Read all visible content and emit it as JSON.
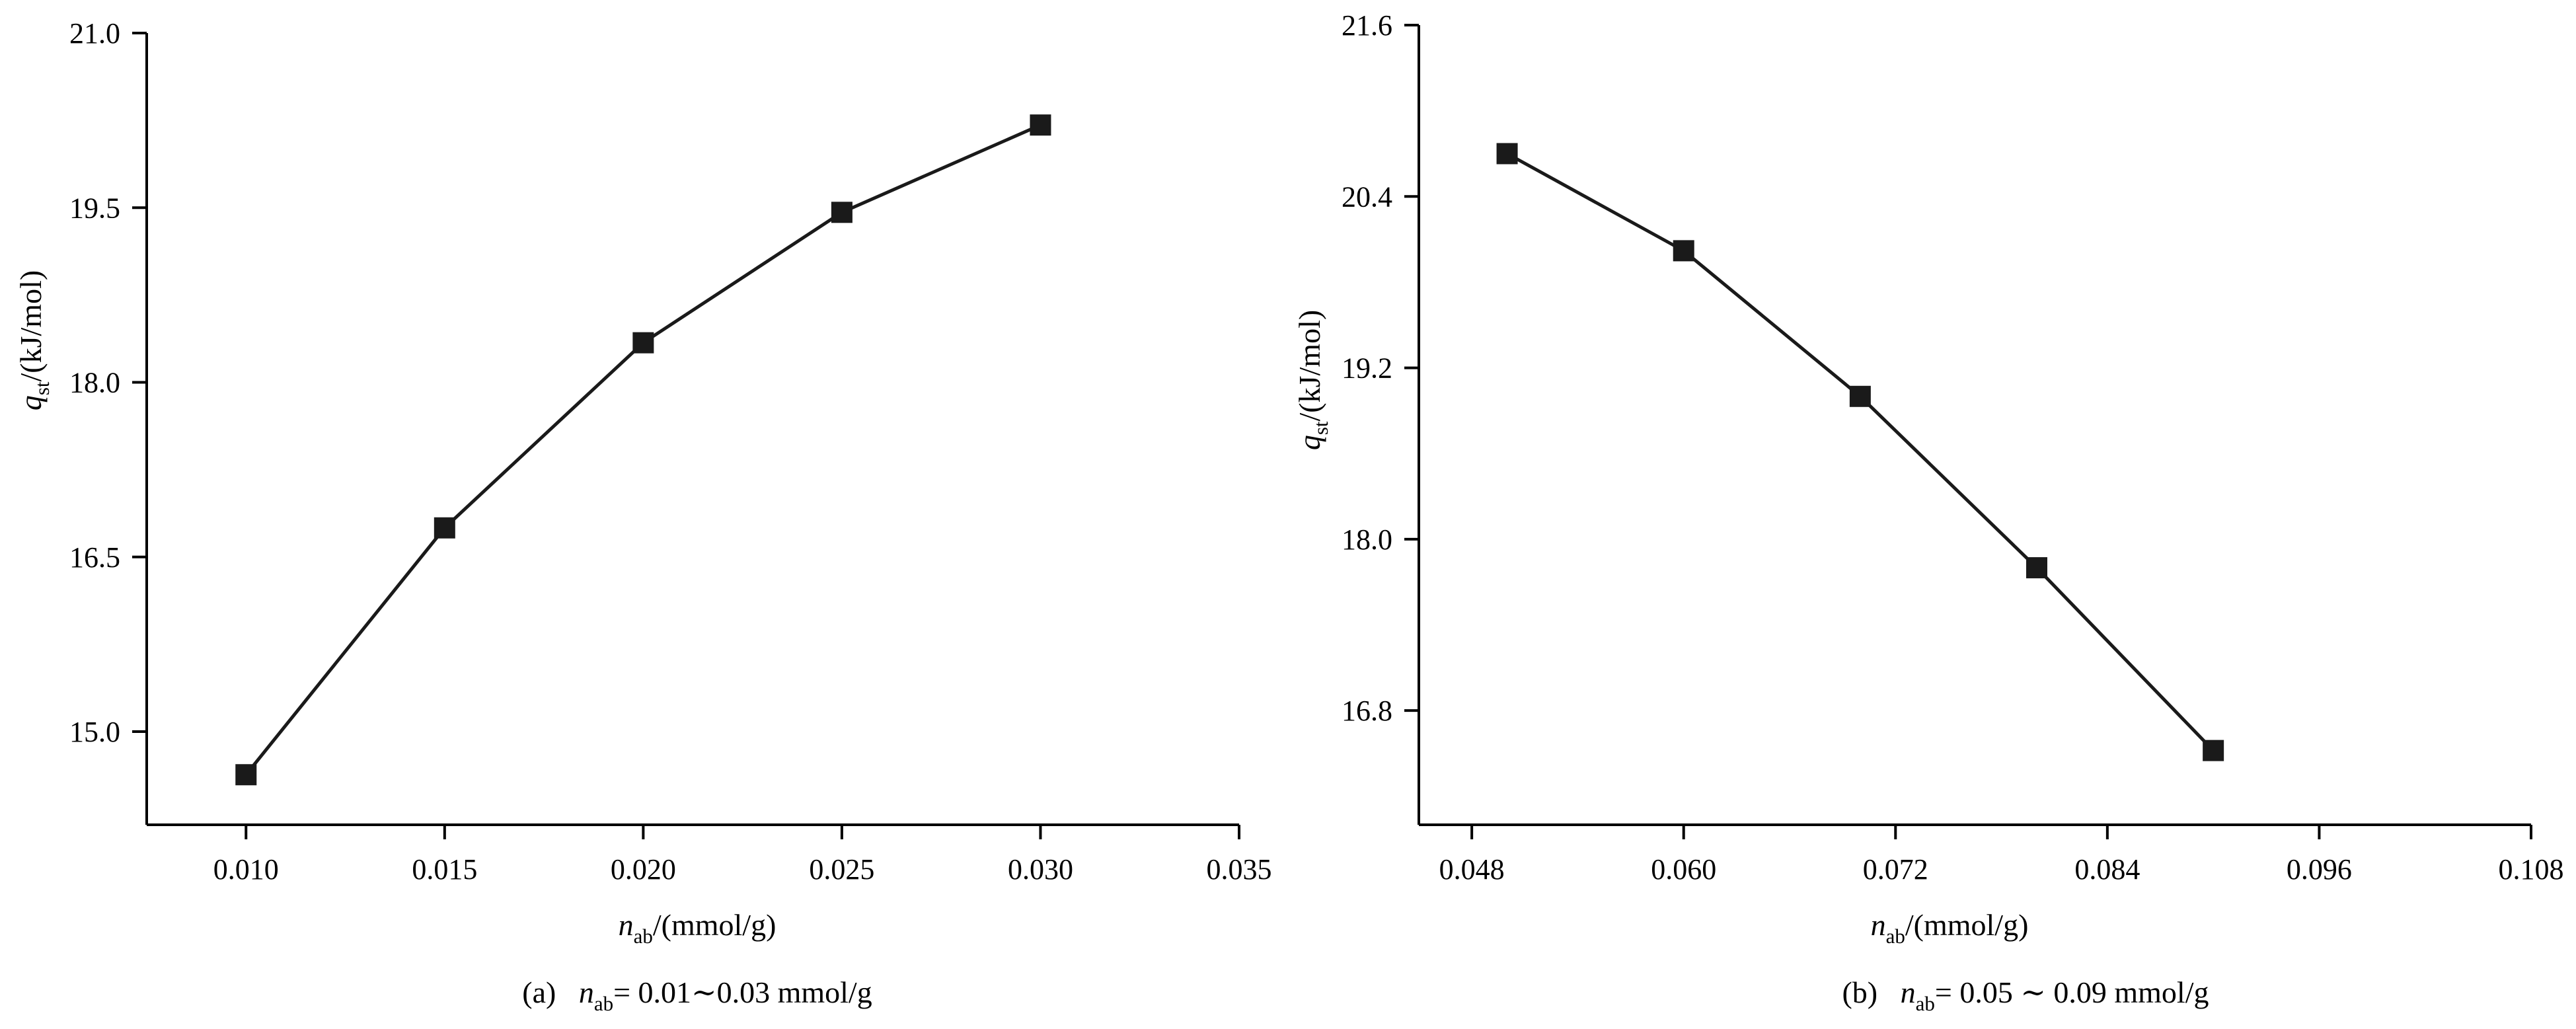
{
  "chart_data": [
    {
      "type": "line",
      "caption": {
        "tag": "(a)",
        "var": "n",
        "sub": "ab",
        "text": "= 0.01∼0.03 mmol/g"
      },
      "xlabel": {
        "var": "n",
        "sub": "ab",
        "unit": "/(mmol/g)"
      },
      "ylabel": {
        "var": "q",
        "sub": "st",
        "unit": "/(kJ/mol)"
      },
      "xlim": [
        0.0075,
        0.035
      ],
      "ylim": [
        14.2,
        21.0
      ],
      "xticks": [
        "0.010",
        "0.015",
        "0.020",
        "0.025",
        "0.030",
        "0.035"
      ],
      "yticks": [
        "15.0",
        "16.5",
        "18.0",
        "19.5",
        "21.0"
      ],
      "marker": "square",
      "color": "#1a1a1a",
      "series": [
        {
          "x": [
            0.01,
            0.015,
            0.02,
            0.025,
            0.03
          ],
          "y": [
            14.63,
            16.75,
            18.34,
            19.46,
            20.21
          ]
        }
      ]
    },
    {
      "type": "line",
      "caption": {
        "tag": "(b)",
        "var": "n",
        "sub": "ab",
        "text": "= 0.05 ∼ 0.09 mmol/g"
      },
      "xlabel": {
        "var": "n",
        "sub": "ab",
        "unit": "/(mmol/g)"
      },
      "ylabel": {
        "var": "q",
        "sub": "st",
        "unit": "/(kJ/mol)"
      },
      "xlim": [
        0.045,
        0.108
      ],
      "ylim": [
        16.0,
        21.6
      ],
      "xticks": [
        "0.048",
        "0.060",
        "0.072",
        "0.084",
        "0.096",
        "0.108"
      ],
      "yticks": [
        "16.8",
        "18.0",
        "19.2",
        "20.4",
        "21.6"
      ],
      "marker": "square",
      "color": "#1a1a1a",
      "series": [
        {
          "x": [
            0.05,
            0.06,
            0.07,
            0.08,
            0.09
          ],
          "y": [
            20.7,
            20.02,
            19.0,
            17.8,
            16.52
          ]
        }
      ]
    }
  ]
}
